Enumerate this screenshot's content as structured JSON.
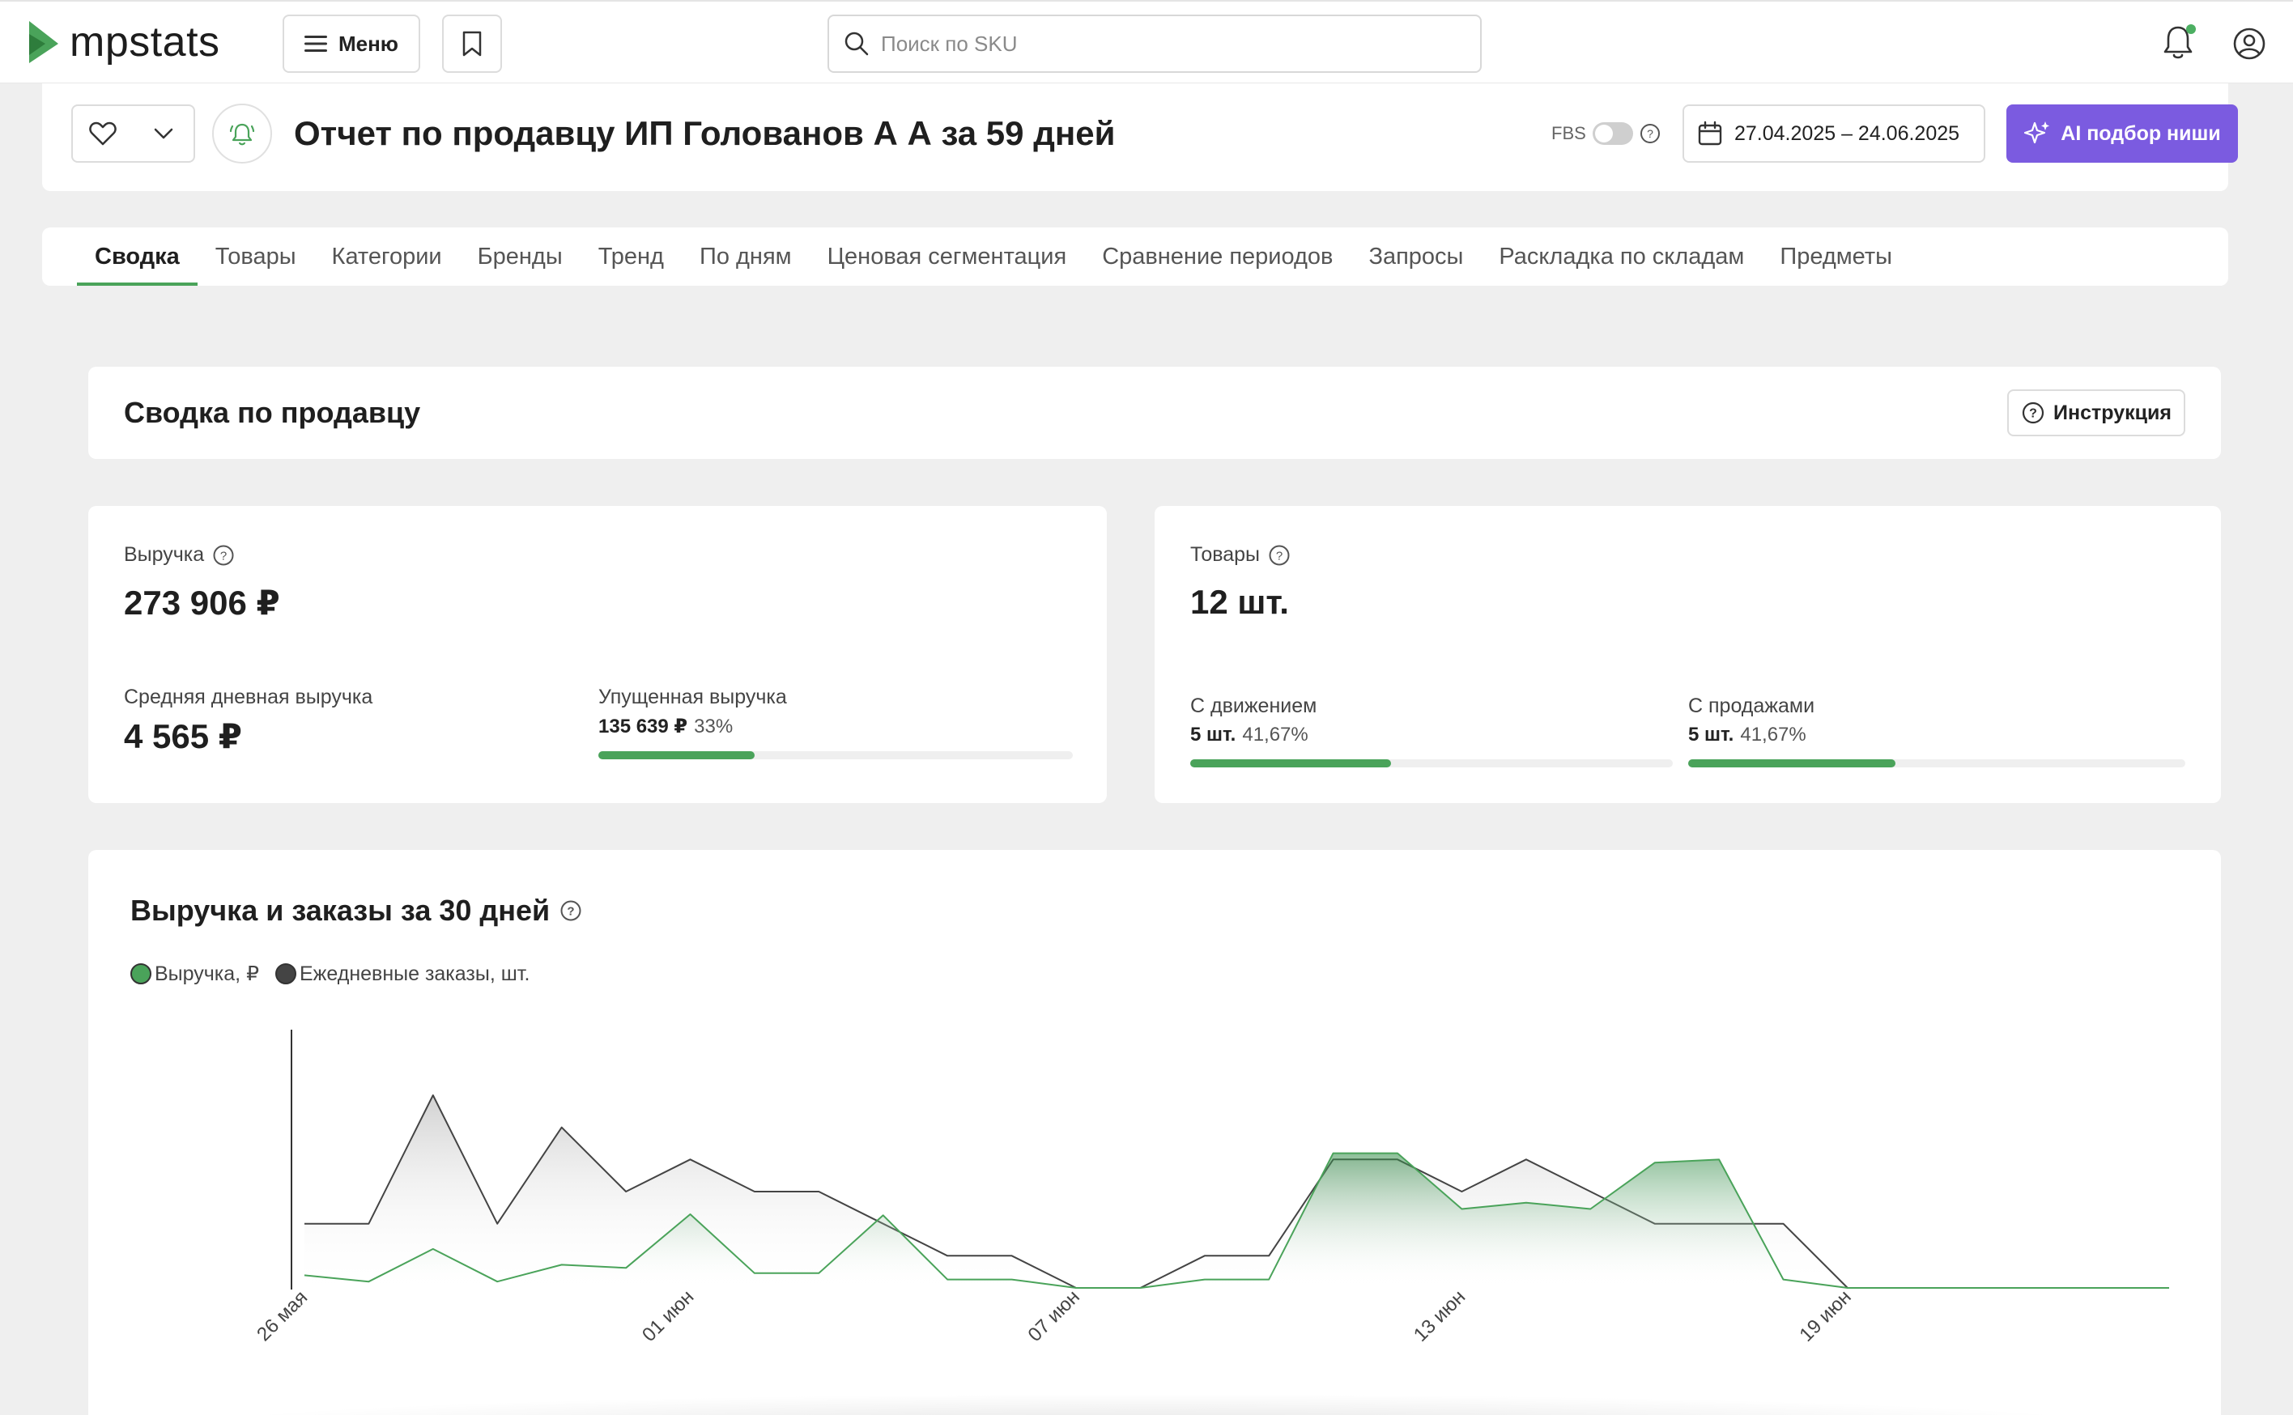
{
  "brand": {
    "name": "mpstats"
  },
  "topbar": {
    "menu_label": "Меню",
    "search_placeholder": "Поиск по SKU"
  },
  "report": {
    "title": "Отчет по продавцу ИП Голованов А А за 59 дней",
    "fbs_label": "FBS",
    "date_range": "27.04.2025 – 24.06.2025",
    "ai_button": "AI подбор ниши"
  },
  "tabs": [
    {
      "label": "Сводка",
      "active": true
    },
    {
      "label": "Товары"
    },
    {
      "label": "Категории"
    },
    {
      "label": "Бренды"
    },
    {
      "label": "Тренд"
    },
    {
      "label": "По дням"
    },
    {
      "label": "Ценовая сегментация"
    },
    {
      "label": "Сравнение периодов"
    },
    {
      "label": "Запросы"
    },
    {
      "label": "Раскладка по складам"
    },
    {
      "label": "Предметы"
    }
  ],
  "summary": {
    "title": "Сводка по продавцу",
    "instruction_button": "Инструкция"
  },
  "revenue_card": {
    "label": "Выручка",
    "value": "273 906 ₽",
    "avg_label": "Средняя дневная выручка",
    "avg_value": "4 565 ₽",
    "lost_label": "Упущенная выручка",
    "lost_value": "135 639 ₽",
    "lost_pct": "33%",
    "lost_fraction": 0.33
  },
  "goods_card": {
    "label": "Товары",
    "value": "12 шт.",
    "movement_label": "С движением",
    "movement_value": "5 шт.",
    "movement_pct": "41,67%",
    "movement_fraction": 0.4167,
    "sales_label": "С продажами",
    "sales_value": "5 шт.",
    "sales_pct": "41,67%",
    "sales_fraction": 0.4167
  },
  "colors": {
    "accent_green": "#4aa35a",
    "ai_purple": "#7b5be0",
    "orders_line": "#444444"
  },
  "chart_data": {
    "type": "area",
    "title": "Выручка и заказы за 30 дней",
    "legend": [
      "Выручка, ₽",
      "Ежедневные заказы, шт."
    ],
    "legend_placement": "top-left",
    "x_tick_labels": [
      "26 мая",
      "01 июн",
      "07 июн",
      "13 июн",
      "19 июн"
    ],
    "x_tick_indices": [
      0,
      6,
      12,
      18,
      24
    ],
    "series": [
      {
        "name": "Выручка, ₽",
        "values": [
          0.12,
          0.06,
          0.37,
          0.06,
          0.22,
          0.19,
          0.7,
          0.14,
          0.14,
          0.69,
          0.08,
          0.08,
          0,
          0,
          0.08,
          0.08,
          1.28,
          1.28,
          0.75,
          0.81,
          0.75,
          1.19,
          1.22,
          0.08,
          0,
          0,
          0,
          0,
          0,
          0
        ]
      },
      {
        "name": "Ежедневные заказы, шт.",
        "values": [
          1,
          1,
          3,
          1,
          2.5,
          1.5,
          2,
          1.5,
          1.5,
          1,
          0.5,
          0.5,
          0,
          0,
          0.5,
          0.5,
          2,
          2,
          1.5,
          2,
          1.5,
          1,
          1,
          1,
          0,
          0,
          0,
          0,
          0,
          0
        ]
      }
    ]
  }
}
